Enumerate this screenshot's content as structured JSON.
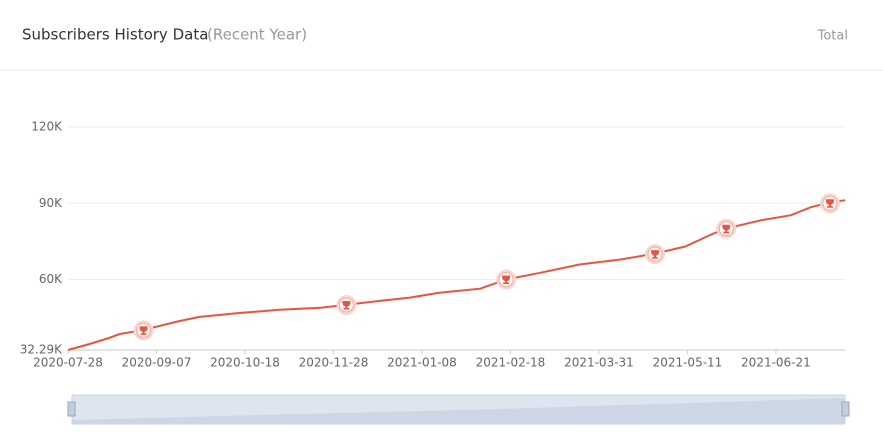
{
  "header": {
    "title": "Subscribers History Data",
    "subtitle": "(Recent Year)",
    "total_label": "Total"
  },
  "chart_data": {
    "type": "line",
    "x": [
      "2020-07-28",
      "2020-08-07",
      "2020-08-16",
      "2020-08-21",
      "2020-09-01",
      "2020-09-18",
      "2020-09-27",
      "2020-10-16",
      "2020-11-03",
      "2020-11-22",
      "2020-12-04",
      "2020-12-20",
      "2021-01-02",
      "2021-01-16",
      "2021-02-04",
      "2021-02-16",
      "2021-03-04",
      "2021-03-22",
      "2021-04-10",
      "2021-04-26",
      "2021-05-10",
      "2021-05-22",
      "2021-05-29",
      "2021-06-14",
      "2021-06-28",
      "2021-07-07",
      "2021-07-16",
      "2021-07-23"
    ],
    "series": [
      {
        "name": "Subscribers",
        "color": "#e8543f",
        "values": [
          32290,
          34660,
          37000,
          38600,
          40200,
          43750,
          45300,
          46900,
          48100,
          48900,
          50100,
          51660,
          52850,
          54800,
          56400,
          60000,
          62700,
          65900,
          67900,
          70200,
          73000,
          77700,
          80100,
          83300,
          85300,
          88400,
          90400,
          91200
        ]
      }
    ],
    "milestones": [
      {
        "date": "2020-09-01",
        "value": 40000
      },
      {
        "date": "2020-12-04",
        "value": 50000
      },
      {
        "date": "2021-02-16",
        "value": 60000
      },
      {
        "date": "2021-04-26",
        "value": 70000
      },
      {
        "date": "2021-05-29",
        "value": 80000
      },
      {
        "date": "2021-07-16",
        "value": 90000
      }
    ],
    "xlim": [
      "2020-07-28",
      "2021-07-23"
    ],
    "xticks": [
      "2020-07-28",
      "2020-09-07",
      "2020-10-18",
      "2020-11-28",
      "2021-01-08",
      "2021-02-18",
      "2021-03-31",
      "2021-05-11",
      "2021-06-21"
    ],
    "ylim": [
      32290,
      120000
    ],
    "yticks": [
      {
        "value": 32290,
        "label": "32.29K"
      },
      {
        "value": 60000,
        "label": "60K"
      },
      {
        "value": 90000,
        "label": "90K"
      },
      {
        "value": 120000,
        "label": "120K"
      }
    ],
    "grid": true
  }
}
